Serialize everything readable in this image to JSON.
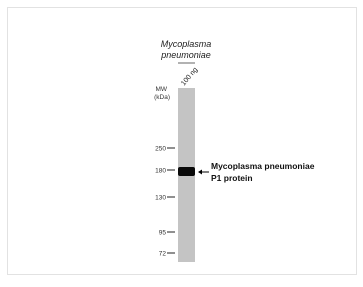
{
  "sample": {
    "label_lines": [
      "Mycoplasma",
      "pneumoniae"
    ]
  },
  "lane": {
    "label": "100 ng"
  },
  "mw": {
    "label_lines": [
      "MW",
      "(kDa)"
    ],
    "markers": [
      "250",
      "180",
      "130",
      "95",
      "72"
    ]
  },
  "band": {
    "label_lines": [
      "Mycoplasma pneumoniae",
      "P1 protein"
    ]
  }
}
